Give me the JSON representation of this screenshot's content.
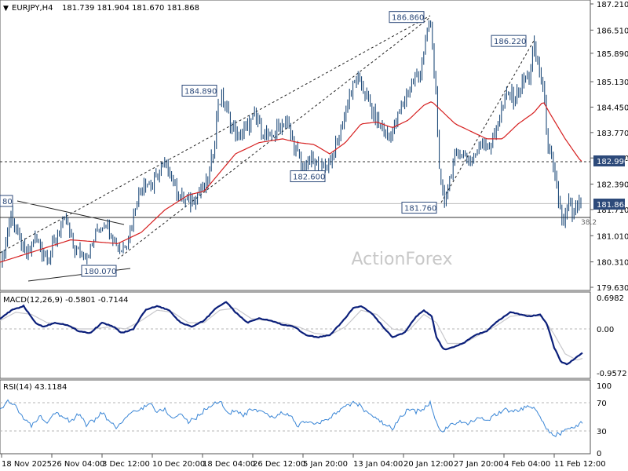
{
  "header": {
    "symbol": "EURJPY,H4",
    "ohlc": "181.739 181.904 181.670 181.868"
  },
  "watermark": "ActionForex",
  "colors": {
    "candle": "#0b3b6e",
    "ma": "#d62020",
    "macd": "#0b1f7a",
    "macd_signal": "#c8c8cc",
    "rsi": "#3a86d6",
    "grid": "#a9a9a9",
    "frame": "#555555",
    "price_tag_bg": "#2d4a7a"
  },
  "price_panel": {
    "y_ticks": [
      "187.210",
      "186.510",
      "185.890",
      "185.130",
      "184.450",
      "183.770",
      "183.090",
      "182.390",
      "181.710",
      "181.010",
      "180.310",
      "179.630"
    ],
    "current_price": "181.868",
    "level_182990": "182.990",
    "left_edge_label": "80",
    "right_mark": "38.2",
    "callouts": [
      {
        "text": "186.860",
        "price": 186.86
      },
      {
        "text": "186.220",
        "price": 186.22
      },
      {
        "text": "184.890",
        "price": 184.89
      },
      {
        "text": "182.600",
        "price": 182.6
      },
      {
        "text": "181.760",
        "price": 181.76
      },
      {
        "text": "180.070",
        "price": 180.07
      }
    ],
    "horizontal_levels": [
      182.99,
      181.868,
      181.5
    ],
    "candle_anchors": [
      [
        0,
        180.15
      ],
      [
        6,
        180.7
      ],
      [
        14,
        181.6
      ],
      [
        24,
        180.9
      ],
      [
        34,
        180.4
      ],
      [
        44,
        181.0
      ],
      [
        54,
        180.6
      ],
      [
        64,
        180.5
      ],
      [
        74,
        181.1
      ],
      [
        84,
        181.4
      ],
      [
        94,
        180.7
      ],
      [
        104,
        180.5
      ],
      [
        114,
        180.55
      ],
      [
        124,
        181.2
      ],
      [
        134,
        181.4
      ],
      [
        144,
        181.0
      ],
      [
        154,
        180.6
      ],
      [
        164,
        181.0
      ],
      [
        174,
        182.0
      ],
      [
        184,
        182.5
      ],
      [
        194,
        182.3
      ],
      [
        204,
        182.8
      ],
      [
        214,
        182.9
      ],
      [
        224,
        182.2
      ],
      [
        234,
        182.0
      ],
      [
        244,
        181.9
      ],
      [
        254,
        182.2
      ],
      [
        264,
        182.4
      ],
      [
        272,
        183.3
      ],
      [
        278,
        184.6
      ],
      [
        284,
        184.7
      ],
      [
        294,
        184.0
      ],
      [
        304,
        183.6
      ],
      [
        314,
        183.9
      ],
      [
        324,
        184.2
      ],
      [
        334,
        183.8
      ],
      [
        344,
        183.6
      ],
      [
        354,
        183.9
      ],
      [
        364,
        184.1
      ],
      [
        374,
        183.5
      ],
      [
        384,
        182.8
      ],
      [
        394,
        183.0
      ],
      [
        404,
        182.9
      ],
      [
        414,
        182.8
      ],
      [
        424,
        183.2
      ],
      [
        434,
        183.8
      ],
      [
        444,
        184.7
      ],
      [
        454,
        185.2
      ],
      [
        464,
        184.9
      ],
      [
        474,
        184.3
      ],
      [
        484,
        184.0
      ],
      [
        494,
        183.6
      ],
      [
        504,
        184.0
      ],
      [
        514,
        184.6
      ],
      [
        524,
        185.1
      ],
      [
        534,
        185.3
      ],
      [
        544,
        186.4
      ],
      [
        548,
        186.7
      ],
      [
        556,
        184.7
      ],
      [
        560,
        182.4
      ],
      [
        566,
        181.9
      ],
      [
        572,
        182.5
      ],
      [
        578,
        183.0
      ],
      [
        586,
        183.3
      ],
      [
        596,
        183.0
      ],
      [
        606,
        183.2
      ],
      [
        616,
        183.6
      ],
      [
        626,
        183.4
      ],
      [
        636,
        184.2
      ],
      [
        646,
        184.8
      ],
      [
        656,
        184.7
      ],
      [
        666,
        185.1
      ],
      [
        674,
        185.3
      ],
      [
        680,
        186.1
      ],
      [
        686,
        185.5
      ],
      [
        692,
        184.9
      ],
      [
        698,
        183.5
      ],
      [
        706,
        182.6
      ],
      [
        712,
        181.9
      ],
      [
        718,
        181.3
      ],
      [
        724,
        181.9
      ],
      [
        730,
        181.5
      ],
      [
        736,
        181.8
      ],
      [
        742,
        181.87
      ]
    ],
    "ma_anchors": [
      [
        0,
        180.3
      ],
      [
        30,
        180.5
      ],
      [
        60,
        180.7
      ],
      [
        90,
        180.9
      ],
      [
        120,
        180.85
      ],
      [
        150,
        180.8
      ],
      [
        180,
        181.1
      ],
      [
        210,
        181.7
      ],
      [
        240,
        182.1
      ],
      [
        260,
        182.2
      ],
      [
        280,
        182.7
      ],
      [
        300,
        183.2
      ],
      [
        330,
        183.5
      ],
      [
        360,
        183.6
      ],
      [
        380,
        183.5
      ],
      [
        400,
        183.45
      ],
      [
        420,
        183.2
      ],
      [
        440,
        183.5
      ],
      [
        460,
        184.0
      ],
      [
        480,
        184.05
      ],
      [
        500,
        183.9
      ],
      [
        520,
        184.1
      ],
      [
        540,
        184.5
      ],
      [
        550,
        184.6
      ],
      [
        560,
        184.4
      ],
      [
        580,
        184.0
      ],
      [
        600,
        183.8
      ],
      [
        620,
        183.6
      ],
      [
        640,
        183.6
      ],
      [
        660,
        184.0
      ],
      [
        680,
        184.3
      ],
      [
        692,
        184.6
      ],
      [
        700,
        184.3
      ],
      [
        720,
        183.6
      ],
      [
        740,
        183.0
      ]
    ]
  },
  "macd_panel": {
    "label": "MACD(12,26,9) -0.5801 -0.7144",
    "y_ticks": [
      "0.6982",
      "0.00",
      "-0.9572"
    ],
    "macd_anchors": [
      [
        0,
        0.25
      ],
      [
        15,
        0.45
      ],
      [
        30,
        0.55
      ],
      [
        45,
        0.15
      ],
      [
        55,
        0.05
      ],
      [
        70,
        0.15
      ],
      [
        85,
        0.1
      ],
      [
        100,
        -0.05
      ],
      [
        115,
        -0.1
      ],
      [
        130,
        0.15
      ],
      [
        145,
        0.05
      ],
      [
        155,
        -0.1
      ],
      [
        170,
        0.0
      ],
      [
        185,
        0.45
      ],
      [
        200,
        0.55
      ],
      [
        215,
        0.45
      ],
      [
        230,
        0.15
      ],
      [
        245,
        0.05
      ],
      [
        260,
        0.2
      ],
      [
        275,
        0.5
      ],
      [
        288,
        0.65
      ],
      [
        300,
        0.4
      ],
      [
        315,
        0.15
      ],
      [
        330,
        0.25
      ],
      [
        345,
        0.2
      ],
      [
        360,
        0.1
      ],
      [
        375,
        0.05
      ],
      [
        390,
        -0.15
      ],
      [
        405,
        -0.2
      ],
      [
        420,
        -0.15
      ],
      [
        435,
        0.15
      ],
      [
        450,
        0.5
      ],
      [
        460,
        0.55
      ],
      [
        475,
        0.35
      ],
      [
        490,
        0.0
      ],
      [
        500,
        -0.2
      ],
      [
        515,
        -0.1
      ],
      [
        530,
        0.3
      ],
      [
        540,
        0.45
      ],
      [
        550,
        0.3
      ],
      [
        556,
        -0.2
      ],
      [
        565,
        -0.5
      ],
      [
        575,
        -0.45
      ],
      [
        590,
        -0.35
      ],
      [
        605,
        -0.15
      ],
      [
        620,
        -0.05
      ],
      [
        635,
        0.2
      ],
      [
        650,
        0.4
      ],
      [
        662,
        0.35
      ],
      [
        675,
        0.3
      ],
      [
        688,
        0.35
      ],
      [
        697,
        0.1
      ],
      [
        706,
        -0.45
      ],
      [
        715,
        -0.8
      ],
      [
        722,
        -0.85
      ],
      [
        732,
        -0.72
      ],
      [
        742,
        -0.58
      ]
    ],
    "signal_anchors": [
      [
        0,
        0.2
      ],
      [
        20,
        0.4
      ],
      [
        40,
        0.35
      ],
      [
        60,
        0.15
      ],
      [
        80,
        0.12
      ],
      [
        100,
        0.0
      ],
      [
        120,
        0.0
      ],
      [
        140,
        0.05
      ],
      [
        160,
        0.0
      ],
      [
        180,
        0.2
      ],
      [
        200,
        0.45
      ],
      [
        220,
        0.4
      ],
      [
        240,
        0.15
      ],
      [
        260,
        0.15
      ],
      [
        280,
        0.45
      ],
      [
        300,
        0.5
      ],
      [
        320,
        0.25
      ],
      [
        340,
        0.2
      ],
      [
        360,
        0.15
      ],
      [
        380,
        0.05
      ],
      [
        400,
        -0.1
      ],
      [
        420,
        -0.15
      ],
      [
        440,
        0.05
      ],
      [
        460,
        0.45
      ],
      [
        480,
        0.35
      ],
      [
        500,
        0.0
      ],
      [
        520,
        -0.05
      ],
      [
        540,
        0.35
      ],
      [
        556,
        0.15
      ],
      [
        570,
        -0.35
      ],
      [
        590,
        -0.35
      ],
      [
        610,
        -0.15
      ],
      [
        630,
        0.05
      ],
      [
        650,
        0.3
      ],
      [
        670,
        0.35
      ],
      [
        690,
        0.3
      ],
      [
        705,
        -0.1
      ],
      [
        720,
        -0.6
      ],
      [
        735,
        -0.75
      ],
      [
        742,
        -0.71
      ]
    ]
  },
  "rsi_panel": {
    "label": "RSI(14) 43.1184",
    "y_ticks": [
      "100",
      "70",
      "30",
      "0"
    ],
    "rsi_anchors": [
      [
        0,
        62
      ],
      [
        10,
        72
      ],
      [
        20,
        68
      ],
      [
        30,
        48
      ],
      [
        40,
        38
      ],
      [
        50,
        52
      ],
      [
        60,
        45
      ],
      [
        70,
        58
      ],
      [
        80,
        52
      ],
      [
        90,
        44
      ],
      [
        100,
        55
      ],
      [
        110,
        40
      ],
      [
        120,
        46
      ],
      [
        130,
        58
      ],
      [
        140,
        42
      ],
      [
        150,
        36
      ],
      [
        160,
        50
      ],
      [
        170,
        58
      ],
      [
        180,
        62
      ],
      [
        190,
        72
      ],
      [
        200,
        58
      ],
      [
        210,
        62
      ],
      [
        220,
        48
      ],
      [
        230,
        56
      ],
      [
        240,
        44
      ],
      [
        250,
        50
      ],
      [
        260,
        60
      ],
      [
        270,
        68
      ],
      [
        280,
        74
      ],
      [
        290,
        56
      ],
      [
        300,
        60
      ],
      [
        310,
        52
      ],
      [
        320,
        62
      ],
      [
        330,
        58
      ],
      [
        340,
        54
      ],
      [
        350,
        50
      ],
      [
        360,
        58
      ],
      [
        370,
        52
      ],
      [
        380,
        38
      ],
      [
        390,
        46
      ],
      [
        400,
        40
      ],
      [
        410,
        44
      ],
      [
        420,
        48
      ],
      [
        430,
        60
      ],
      [
        440,
        64
      ],
      [
        450,
        72
      ],
      [
        460,
        66
      ],
      [
        470,
        54
      ],
      [
        480,
        48
      ],
      [
        490,
        40
      ],
      [
        500,
        34
      ],
      [
        510,
        50
      ],
      [
        520,
        62
      ],
      [
        530,
        58
      ],
      [
        540,
        64
      ],
      [
        548,
        70
      ],
      [
        556,
        42
      ],
      [
        564,
        30
      ],
      [
        574,
        40
      ],
      [
        584,
        44
      ],
      [
        594,
        40
      ],
      [
        604,
        46
      ],
      [
        614,
        50
      ],
      [
        624,
        48
      ],
      [
        634,
        56
      ],
      [
        644,
        62
      ],
      [
        654,
        58
      ],
      [
        664,
        62
      ],
      [
        674,
        66
      ],
      [
        684,
        60
      ],
      [
        694,
        38
      ],
      [
        704,
        24
      ],
      [
        714,
        28
      ],
      [
        724,
        34
      ],
      [
        732,
        38
      ],
      [
        742,
        43
      ]
    ]
  },
  "x_axis": {
    "labels": [
      "18 Nov 2025",
      "26 Nov 04:00",
      "3 Dec 12:00",
      "10 Dec 20:00",
      "18 Dec 04:00",
      "26 Dec 12:00",
      "5 Jan 20:00",
      "13 Jan 04:00",
      "20 Jan 12:00",
      "27 Jan 20:00",
      "4 Feb 04:00",
      "11 Feb 12:00"
    ]
  }
}
